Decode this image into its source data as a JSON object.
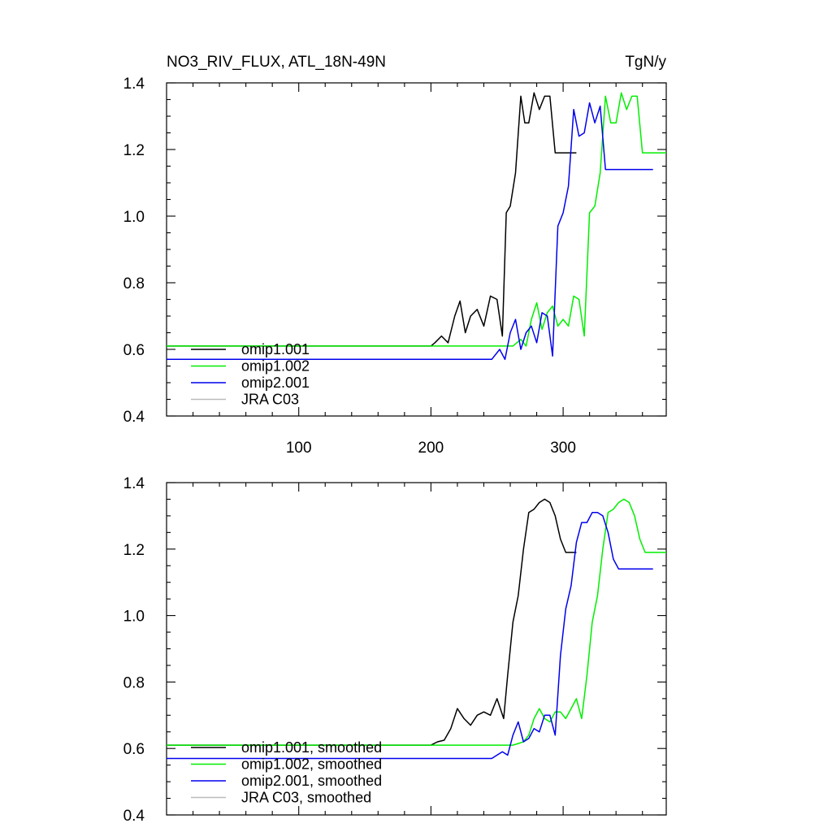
{
  "figure": {
    "title_left": "NO3_RIV_FLUX, ATL_18N-49N",
    "title_right": "TgN/y"
  },
  "chart_data": [
    {
      "type": "line",
      "title": "NO3_RIV_FLUX, ATL_18N-49N",
      "units": "TgN/y",
      "xlim": [
        0,
        378
      ],
      "ylim": [
        0.4,
        1.4
      ],
      "xticks": [
        100,
        200,
        300
      ],
      "yticks": [
        0.4,
        0.6,
        0.8,
        1.0,
        1.2,
        1.4
      ],
      "ytick_labels": [
        "0.4",
        "0.6",
        "0.8",
        "1.0",
        "1.2",
        "1.4"
      ],
      "xtick_labels": [
        "100",
        "200",
        "300"
      ],
      "grid": false,
      "legend_position": "bottom-left",
      "series": [
        {
          "name": "omip1.001",
          "color": "#000000",
          "x": [
            0,
            200,
            203,
            208,
            213,
            218,
            222,
            226,
            230,
            235,
            240,
            245,
            250,
            254,
            257,
            260,
            264,
            268,
            271,
            274,
            278,
            282,
            286,
            290,
            294,
            298,
            302,
            306,
            310
          ],
          "y": [
            0.61,
            0.61,
            0.62,
            0.64,
            0.62,
            0.7,
            0.745,
            0.65,
            0.7,
            0.72,
            0.67,
            0.76,
            0.75,
            0.64,
            1.01,
            1.03,
            1.13,
            1.36,
            1.28,
            1.28,
            1.37,
            1.32,
            1.36,
            1.36,
            1.19,
            1.19,
            1.19,
            1.19,
            1.19
          ]
        },
        {
          "name": "omip1.002",
          "color": "#00ee00",
          "x": [
            0,
            262,
            268,
            272,
            276,
            280,
            284,
            288,
            292,
            296,
            300,
            304,
            308,
            312,
            316,
            320,
            324,
            328,
            332,
            336,
            340,
            344,
            348,
            352,
            356,
            360,
            364,
            368,
            372,
            378
          ],
          "y": [
            0.61,
            0.61,
            0.63,
            0.61,
            0.69,
            0.74,
            0.66,
            0.71,
            0.73,
            0.67,
            0.69,
            0.67,
            0.76,
            0.75,
            0.64,
            1.01,
            1.03,
            1.13,
            1.36,
            1.28,
            1.28,
            1.37,
            1.32,
            1.36,
            1.36,
            1.19,
            1.19,
            1.19,
            1.19,
            1.19
          ]
        },
        {
          "name": "omip2.001",
          "color": "#0000ee",
          "x": [
            0,
            246,
            252,
            256,
            260,
            264,
            268,
            272,
            276,
            280,
            284,
            288,
            292,
            296,
            300,
            304,
            308,
            312,
            316,
            320,
            324,
            328,
            332,
            336,
            340,
            344,
            348,
            352,
            356,
            360,
            364,
            368
          ],
          "y": [
            0.57,
            0.57,
            0.6,
            0.57,
            0.65,
            0.69,
            0.6,
            0.65,
            0.67,
            0.62,
            0.71,
            0.7,
            0.58,
            0.97,
            1.01,
            1.09,
            1.32,
            1.24,
            1.25,
            1.34,
            1.28,
            1.33,
            1.14,
            1.14,
            1.14,
            1.14,
            1.14,
            1.14,
            1.14,
            1.14,
            1.14,
            1.14
          ]
        },
        {
          "name": "JRA C03",
          "color": "#bbbbbb",
          "x": [],
          "y": []
        }
      ]
    },
    {
      "type": "line",
      "title": "",
      "xlim": [
        0,
        378
      ],
      "ylim": [
        0.4,
        1.4
      ],
      "xticks": [
        100,
        200,
        300
      ],
      "yticks": [
        0.4,
        0.6,
        0.8,
        1.0,
        1.2,
        1.4
      ],
      "ytick_labels": [
        "0.4",
        "0.6",
        "0.8",
        "1.0",
        "1.2",
        "1.4"
      ],
      "grid": false,
      "legend_position": "bottom-left",
      "series": [
        {
          "name": "omip1.001, smoothed",
          "color": "#000000",
          "x": [
            0,
            200,
            205,
            210,
            215,
            220,
            225,
            230,
            235,
            240,
            245,
            250,
            255,
            258,
            262,
            266,
            270,
            274,
            278,
            282,
            286,
            290,
            294,
            298,
            302,
            306,
            310
          ],
          "y": [
            0.61,
            0.61,
            0.62,
            0.625,
            0.66,
            0.72,
            0.69,
            0.67,
            0.7,
            0.71,
            0.7,
            0.75,
            0.69,
            0.82,
            0.98,
            1.06,
            1.2,
            1.31,
            1.32,
            1.34,
            1.35,
            1.34,
            1.3,
            1.23,
            1.19,
            1.19,
            1.19
          ]
        },
        {
          "name": "omip1.002, smoothed",
          "color": "#00ee00",
          "x": [
            0,
            262,
            266,
            270,
            274,
            278,
            282,
            286,
            290,
            294,
            298,
            302,
            306,
            310,
            314,
            318,
            322,
            326,
            330,
            334,
            338,
            342,
            346,
            350,
            354,
            358,
            362,
            366,
            370,
            374,
            378
          ],
          "y": [
            0.61,
            0.61,
            0.615,
            0.62,
            0.64,
            0.69,
            0.72,
            0.69,
            0.68,
            0.71,
            0.71,
            0.69,
            0.72,
            0.75,
            0.69,
            0.82,
            0.98,
            1.06,
            1.2,
            1.31,
            1.32,
            1.34,
            1.35,
            1.34,
            1.3,
            1.23,
            1.19,
            1.19,
            1.19,
            1.19,
            1.19
          ]
        },
        {
          "name": "omip2.001, smoothed",
          "color": "#0000ee",
          "x": [
            0,
            246,
            250,
            254,
            258,
            262,
            266,
            270,
            274,
            278,
            282,
            286,
            290,
            294,
            298,
            302,
            306,
            310,
            314,
            318,
            322,
            326,
            330,
            334,
            338,
            342,
            346,
            350,
            354,
            358,
            362,
            366,
            368
          ],
          "y": [
            0.57,
            0.57,
            0.58,
            0.59,
            0.58,
            0.64,
            0.68,
            0.62,
            0.63,
            0.66,
            0.65,
            0.7,
            0.7,
            0.64,
            0.88,
            1.02,
            1.09,
            1.22,
            1.28,
            1.28,
            1.31,
            1.31,
            1.3,
            1.25,
            1.17,
            1.14,
            1.14,
            1.14,
            1.14,
            1.14,
            1.14,
            1.14,
            1.14
          ]
        },
        {
          "name": "JRA C03, smoothed",
          "color": "#bbbbbb",
          "x": [],
          "y": []
        }
      ]
    }
  ]
}
